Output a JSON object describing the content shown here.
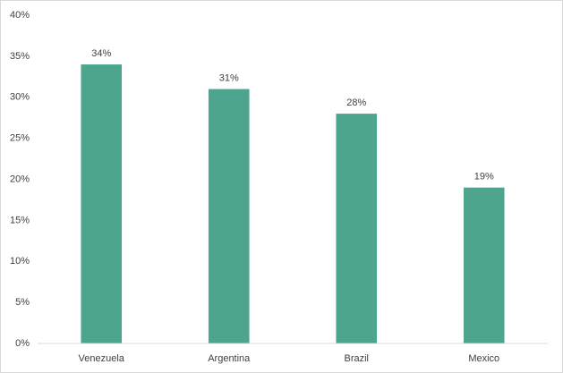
{
  "chart_data": {
    "type": "bar",
    "categories": [
      "Venezuela",
      "Argentina",
      "Brazil",
      "Mexico"
    ],
    "values": [
      34,
      31,
      28,
      19
    ],
    "value_labels": [
      "34%",
      "31%",
      "28%",
      "19%"
    ],
    "color": "#4ca58c",
    "ylim": [
      0,
      40
    ],
    "yticks": [
      {
        "value": 0,
        "label": "0%"
      },
      {
        "value": 5,
        "label": "5%"
      },
      {
        "value": 10,
        "label": "10%"
      },
      {
        "value": 15,
        "label": "15%"
      },
      {
        "value": 20,
        "label": "20%"
      },
      {
        "value": 25,
        "label": "25%"
      },
      {
        "value": 30,
        "label": "30%"
      },
      {
        "value": 35,
        "label": "35%"
      },
      {
        "value": 40,
        "label": "40%"
      }
    ],
    "grid": false
  }
}
